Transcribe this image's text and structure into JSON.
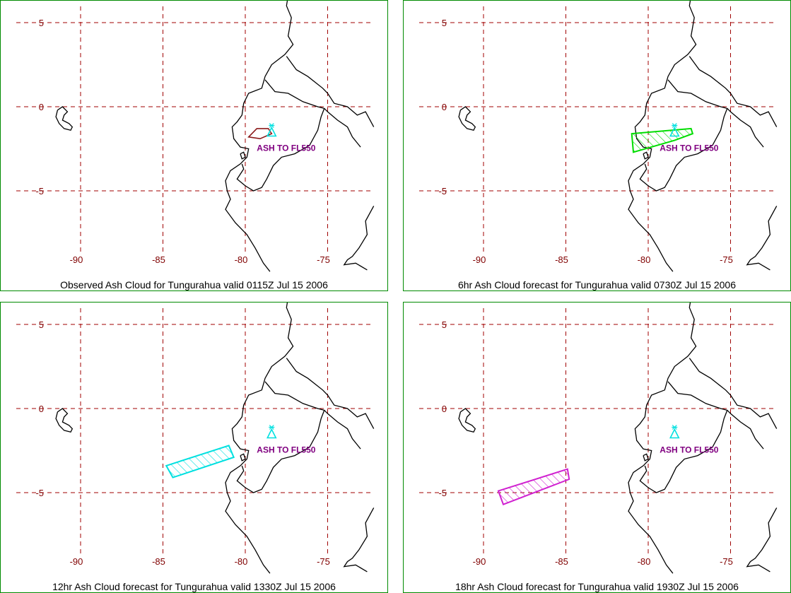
{
  "lat_ticks": [
    "5",
    "0",
    "-5"
  ],
  "lon_ticks": [
    "-90",
    "-85",
    "-80",
    "-75"
  ],
  "label_color": "#800000",
  "grid_color": "#a00000",
  "volcano_color": "#00e0e0",
  "text_color": "#800080",
  "panels": [
    {
      "caption": "Observed Ash Cloud for Tungurahua valid 0115Z Jul 15 2006",
      "annotation": "ASH TO FL550",
      "cloud_color": "#8b1a1a",
      "cloud_kind": "observed"
    },
    {
      "caption": "6hr Ash Cloud forecast for Tungurahua valid 0730Z Jul 15 2006",
      "annotation": "ASH TO FL550",
      "cloud_color": "#00dd00",
      "cloud_kind": "f6"
    },
    {
      "caption": "12hr Ash Cloud forecast for Tungurahua valid 1330Z Jul 15 2006",
      "annotation": "ASH TO FL550",
      "cloud_color": "#00e0e0",
      "cloud_kind": "f12"
    },
    {
      "caption": "18hr Ash Cloud forecast for Tungurahua valid 1930Z Jul 15 2006",
      "annotation": "ASH TO FL550",
      "cloud_color": "#d020d0",
      "cloud_kind": "f18"
    }
  ]
}
